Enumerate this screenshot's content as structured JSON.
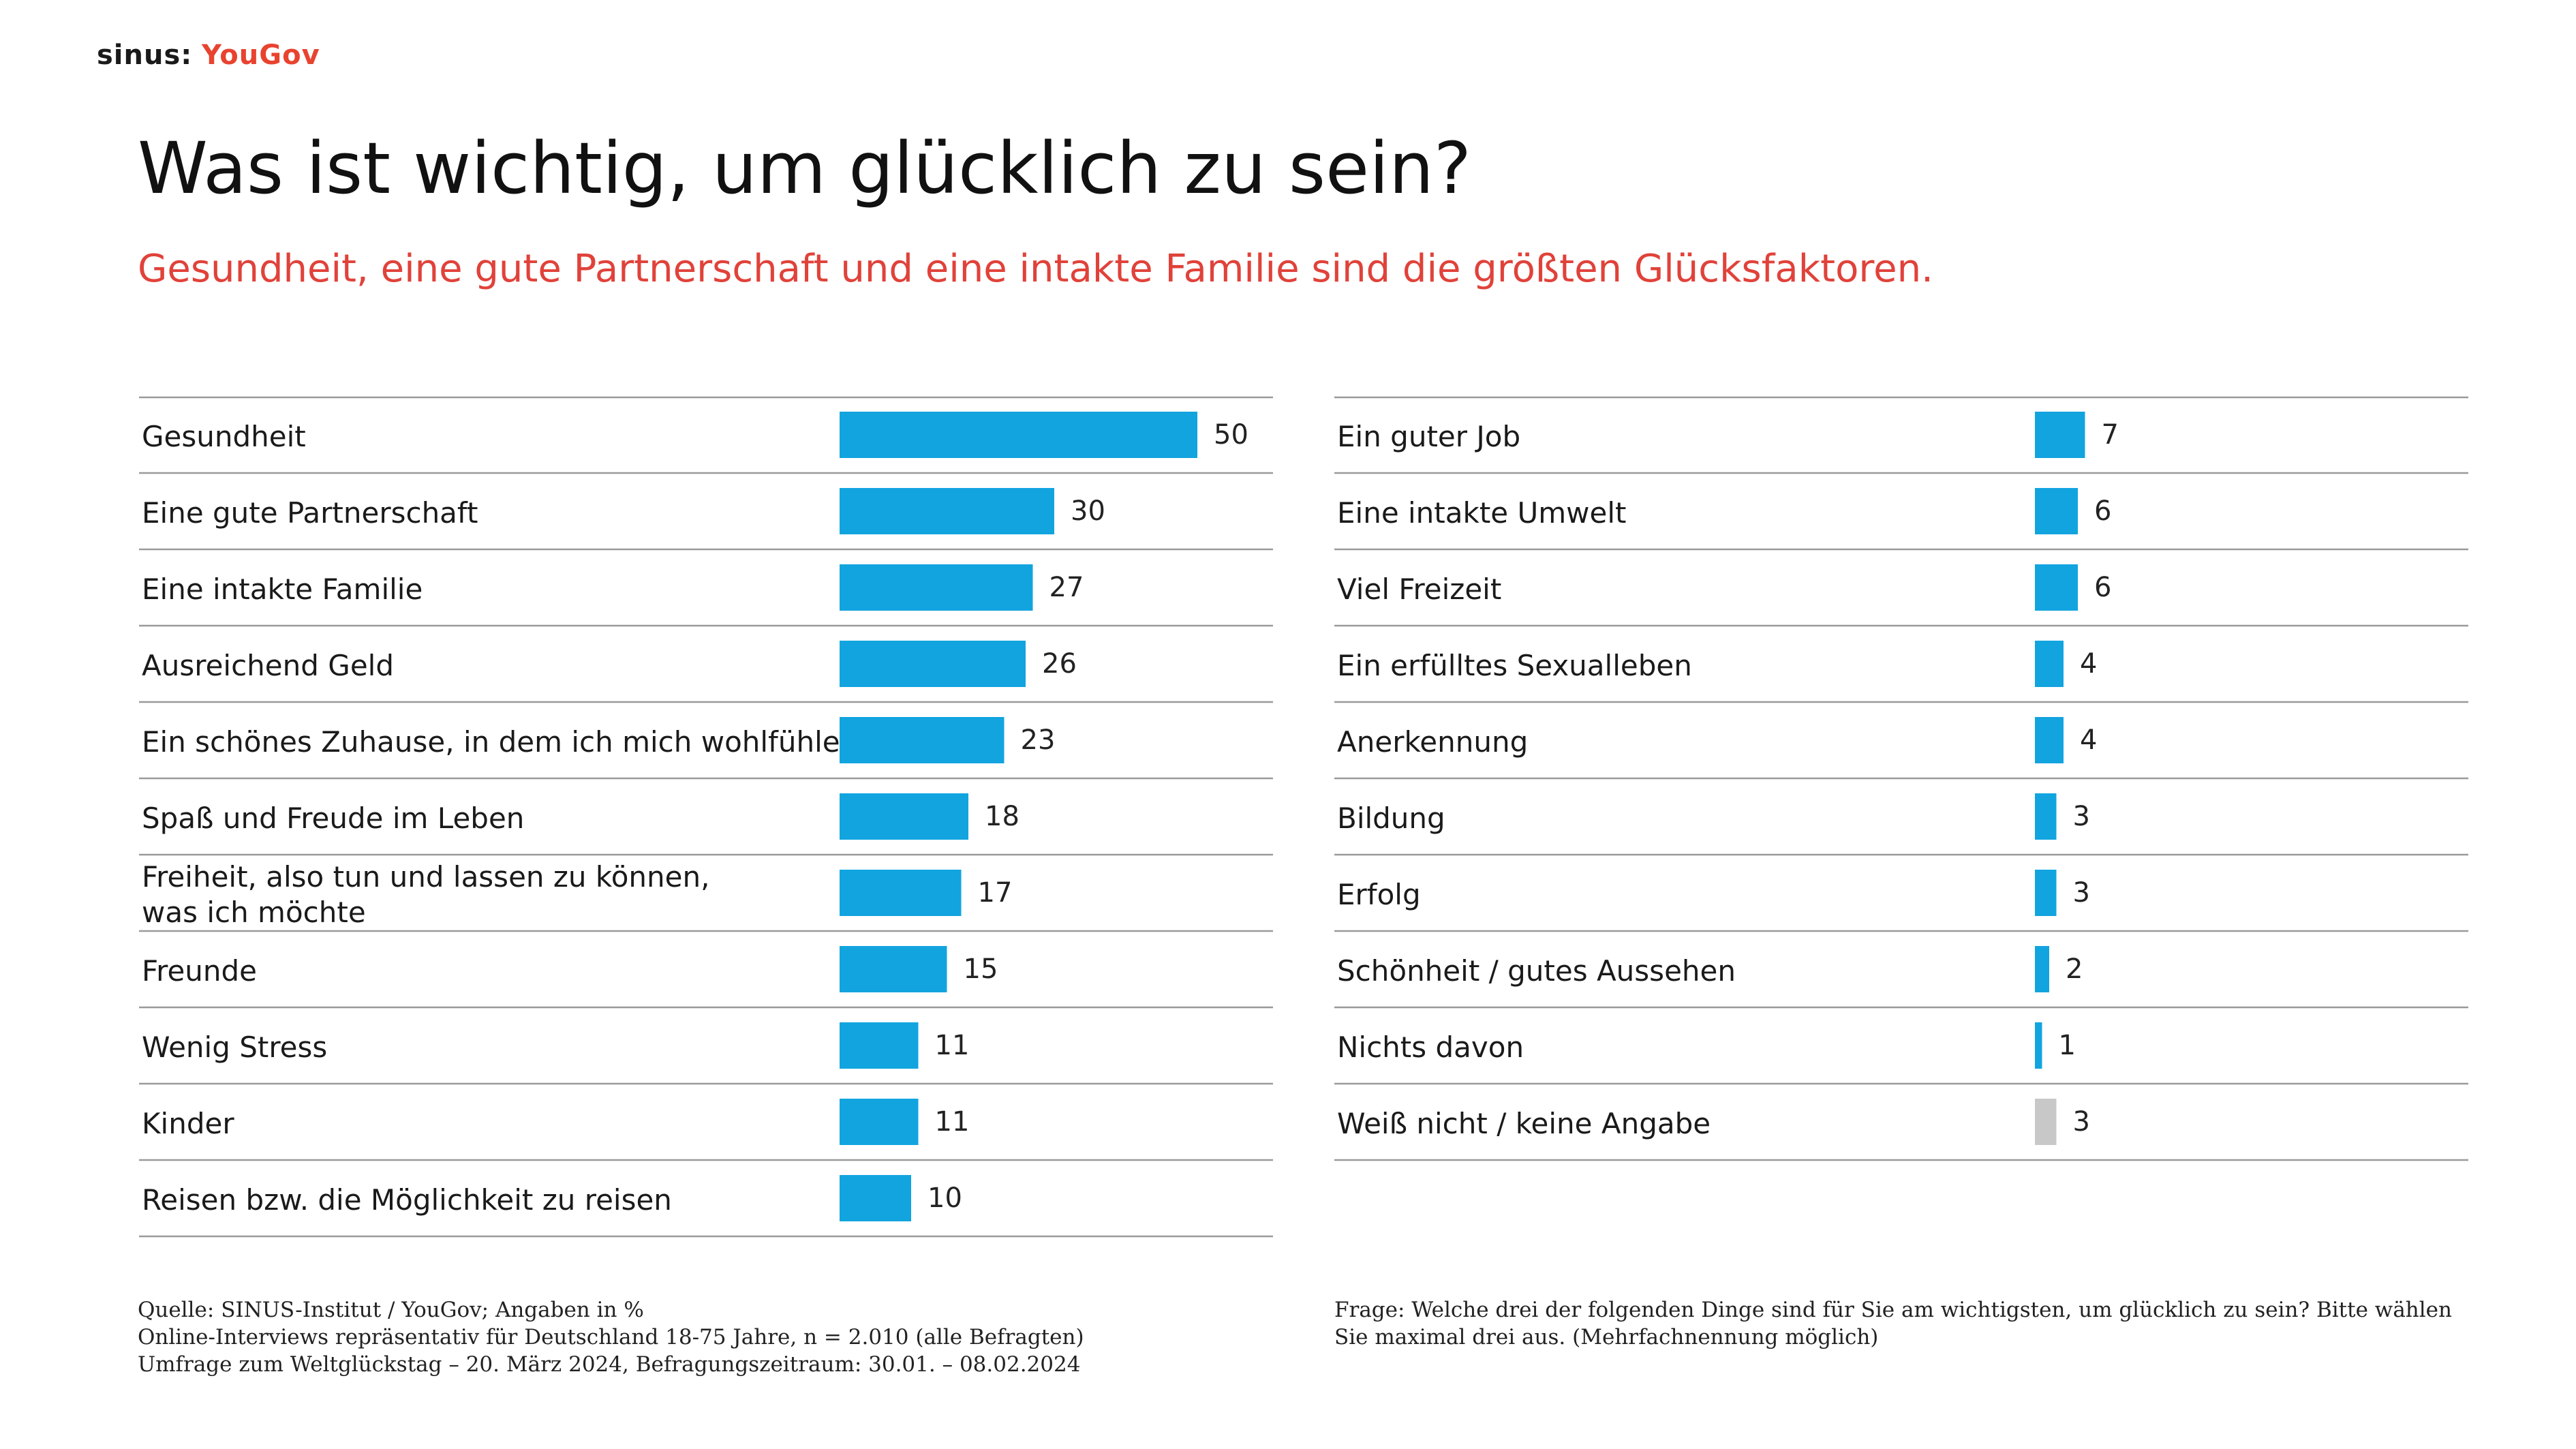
{
  "brand": {
    "name1": "sinus:",
    "name2": "YouGov"
  },
  "title": "Was ist wichtig, um glücklich zu sein?",
  "subtitle": "Gesundheit, eine gute Partnerschaft und eine intakte Familie sind die größten Glücksfaktoren.",
  "colors": {
    "bar": "#12a4df",
    "bar_muted": "#c8c8c8",
    "rule": "#9a9a9a",
    "subtitle": "#e0423a"
  },
  "chart_data": [
    {
      "type": "bar",
      "orientation": "horizontal",
      "xlim": [
        0,
        50
      ],
      "categories": [
        "Gesundheit",
        "Eine gute Partnerschaft",
        "Eine intakte Familie",
        "Ausreichend Geld",
        "Ein schönes Zuhause, in dem ich mich wohlfühle",
        "Spaß und Freude im Leben",
        "Freiheit, also tun und lassen zu können,\nwas ich möchte",
        "Freunde",
        "Wenig Stress",
        "Kinder",
        "Reisen bzw. die Möglichkeit zu reisen"
      ],
      "values": [
        50,
        30,
        27,
        26,
        23,
        18,
        17,
        15,
        11,
        11,
        10
      ]
    },
    {
      "type": "bar",
      "orientation": "horizontal",
      "xlim": [
        0,
        50
      ],
      "categories": [
        "Ein guter Job",
        "Eine intakte Umwelt",
        "Viel Freizeit",
        "Ein erfülltes Sexualleben",
        "Anerkennung",
        "Bildung",
        "Erfolg",
        "Schönheit / gutes Aussehen",
        "Nichts davon",
        "Weiß nicht / keine Angabe"
      ],
      "values": [
        7,
        6,
        6,
        4,
        4,
        3,
        3,
        2,
        1,
        3
      ],
      "muted_indices": [
        9
      ]
    }
  ],
  "footer": {
    "source": [
      "Quelle: SINUS-Institut / YouGov; Angaben in %",
      "Online-Interviews repräsentativ für Deutschland 18-75 Jahre, n = 2.010 (alle Befragten)",
      "Umfrage zum Weltglückstag – 20. März 2024, Befragungszeitraum: 30.01. – 08.02.2024"
    ],
    "question": "Frage: Welche drei der folgenden Dinge sind für Sie am wichtigsten, um glücklich zu sein? Bitte wählen Sie maximal drei aus. (Mehrfachnennung möglich)"
  }
}
